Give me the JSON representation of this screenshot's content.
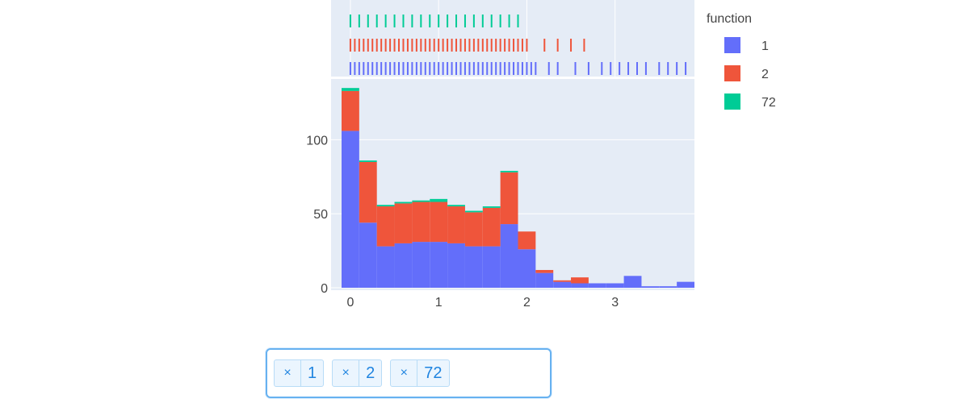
{
  "chart_data": {
    "type": "histogram",
    "barmode": "stack",
    "marginal": "rug",
    "legend": {
      "title": "function",
      "position": "top-right"
    },
    "x_ticks": [
      "0",
      "1",
      "2",
      "3"
    ],
    "y_ticks": [
      "0",
      "50",
      "100"
    ],
    "xlim": [
      -0.1,
      3.9
    ],
    "ylim": [
      0,
      140
    ],
    "bin_edges": [
      -0.1,
      0.1,
      0.3,
      0.5,
      0.7,
      0.9,
      1.1,
      1.3,
      1.5,
      1.7,
      1.9,
      2.1,
      2.3,
      2.5,
      2.7,
      2.9,
      3.1,
      3.3,
      3.5,
      3.7,
      3.9
    ],
    "series": [
      {
        "name": "1",
        "color": "#636efa",
        "values": [
          106,
          44,
          28,
          30,
          31,
          31,
          30,
          28,
          28,
          43,
          26,
          10,
          4,
          3,
          3,
          3,
          8,
          1,
          1,
          4
        ],
        "rug": [
          0,
          0.05,
          0.1,
          0.15,
          0.2,
          0.25,
          0.3,
          0.35,
          0.4,
          0.45,
          0.5,
          0.55,
          0.6,
          0.65,
          0.7,
          0.75,
          0.8,
          0.85,
          0.9,
          0.95,
          1.0,
          1.05,
          1.1,
          1.15,
          1.2,
          1.25,
          1.3,
          1.35,
          1.4,
          1.45,
          1.5,
          1.55,
          1.6,
          1.65,
          1.7,
          1.75,
          1.8,
          1.85,
          1.9,
          1.95,
          2.0,
          2.05,
          2.1,
          2.25,
          2.35,
          2.55,
          2.7,
          2.85,
          2.95,
          3.05,
          3.15,
          3.25,
          3.35,
          3.5,
          3.6,
          3.7,
          3.8
        ]
      },
      {
        "name": "2",
        "color": "#ef553b",
        "values": [
          27,
          41,
          27,
          27,
          27,
          27,
          25,
          23,
          26,
          35,
          12,
          2,
          1,
          4,
          0,
          0,
          0,
          0,
          0,
          0
        ],
        "rug": [
          0,
          0.05,
          0.1,
          0.15,
          0.2,
          0.25,
          0.3,
          0.35,
          0.4,
          0.45,
          0.5,
          0.55,
          0.6,
          0.65,
          0.7,
          0.75,
          0.8,
          0.85,
          0.9,
          0.95,
          1.0,
          1.05,
          1.1,
          1.15,
          1.2,
          1.25,
          1.3,
          1.35,
          1.4,
          1.45,
          1.5,
          1.55,
          1.6,
          1.65,
          1.7,
          1.75,
          1.8,
          1.85,
          1.9,
          1.95,
          2.0,
          2.2,
          2.35,
          2.5,
          2.65
        ]
      },
      {
        "name": "72",
        "color": "#00cc96",
        "values": [
          2,
          1,
          1,
          1,
          1,
          2,
          1,
          1,
          1,
          1,
          0,
          0,
          0,
          0,
          0,
          0,
          0,
          0,
          0,
          0
        ],
        "rug": [
          0,
          0.1,
          0.2,
          0.3,
          0.4,
          0.5,
          0.6,
          0.7,
          0.8,
          0.9,
          1.0,
          1.1,
          1.2,
          1.3,
          1.4,
          1.5,
          1.6,
          1.7,
          1.8,
          1.9
        ]
      }
    ]
  },
  "filter": {
    "remove_symbol": "×",
    "chips": [
      "1",
      "2",
      "72"
    ]
  }
}
